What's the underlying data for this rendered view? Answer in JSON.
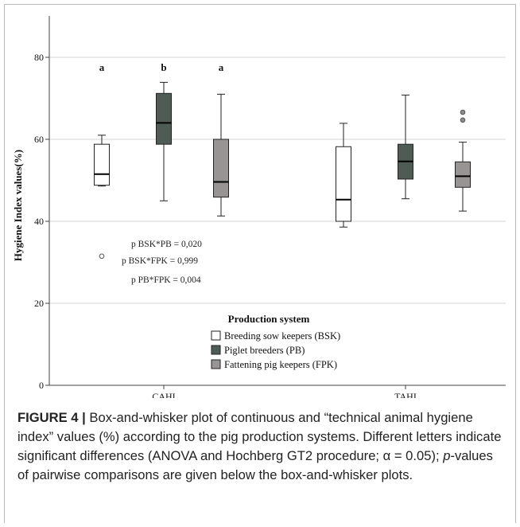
{
  "chart_data": {
    "type": "box",
    "ylabel": "Hygiene Index values(%)",
    "ylim": [
      0,
      90
    ],
    "yticks": [
      0,
      20,
      40,
      60,
      80
    ],
    "grid": true,
    "categories": [
      "CAHI",
      "TAHI"
    ],
    "legend": {
      "title": "Production system",
      "placement": "bottom-center",
      "entries": [
        {
          "label": "Breeding sow keepers (BSK)",
          "color": "#ffffff"
        },
        {
          "label": "Piglet breeders (PB)",
          "color": "#4f5c55"
        },
        {
          "label": "Fattening pig keepers (FPK)",
          "color": "#989494"
        }
      ]
    },
    "series": [
      {
        "name": "Breeding sow keepers (BSK)",
        "color": "#ffffff",
        "boxes": [
          {
            "min": 48.6,
            "q1": 48.8,
            "median": 51.5,
            "q3": 58.8,
            "max": 61.0,
            "outliers": [
              31.5
            ]
          },
          {
            "min": 38.6,
            "q1": 40.0,
            "median": 45.3,
            "q3": 58.2,
            "max": 63.9,
            "outliers": []
          }
        ]
      },
      {
        "name": "Piglet breeders (PB)",
        "color": "#4f5c55",
        "boxes": [
          {
            "min": 45.0,
            "q1": 58.8,
            "median": 64.0,
            "q3": 71.2,
            "max": 73.9,
            "outliers": []
          },
          {
            "min": 45.5,
            "q1": 50.3,
            "median": 54.6,
            "q3": 58.8,
            "max": 70.8,
            "outliers": []
          }
        ]
      },
      {
        "name": "Fattening pig keepers (FPK)",
        "color": "#989494",
        "boxes": [
          {
            "min": 41.3,
            "q1": 45.9,
            "median": 49.6,
            "q3": 60.0,
            "max": 71.0,
            "outliers": []
          },
          {
            "min": 42.5,
            "q1": 48.3,
            "median": 51.0,
            "q3": 54.5,
            "max": 59.3,
            "outliers": [
              64.7,
              66.6
            ]
          }
        ]
      }
    ],
    "group_letters": [
      "a",
      "b",
      "a"
    ],
    "pvalues": [
      "p BSK*PB = 0,020",
      "p BSK*FPK = 0,999",
      "p PB*FPK = 0,004"
    ]
  },
  "caption": {
    "figure_label": "FIGURE 4 |",
    "text_1": " Box-and-whisker plot of continuous and “technical animal hygiene index” values (%) according to the pig production systems. Different letters indicate significant differences (ANOVA and Hochberg GT2 procedure; α = 0.05); ",
    "p_italic": "p",
    "text_2": "-values of pairwise comparisons are given below the box-and-whisker plots."
  }
}
